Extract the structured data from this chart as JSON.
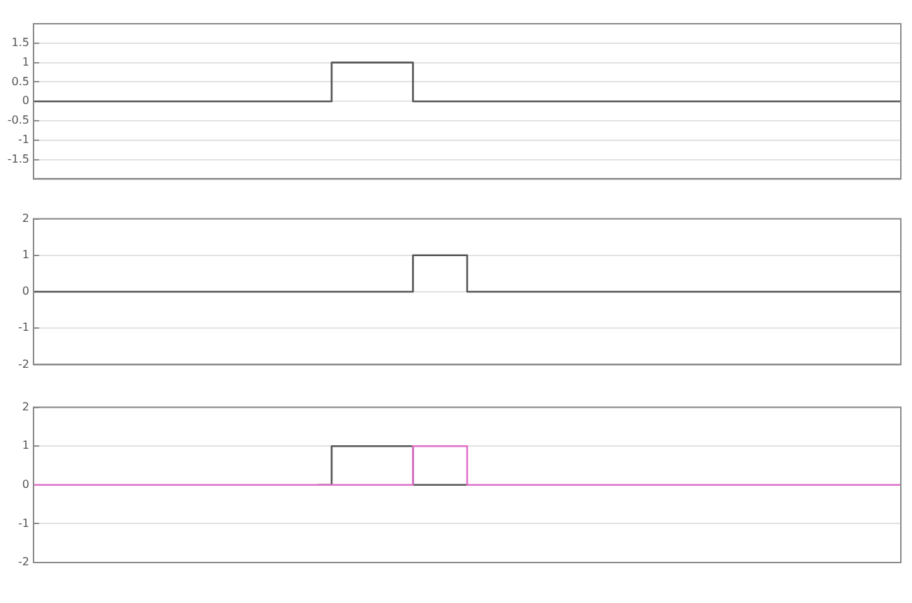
{
  "chart_data": [
    {
      "type": "step",
      "categories": [
        null,
        null,
        null,
        null,
        null,
        null,
        null,
        null,
        null,
        null,
        null,
        null,
        null,
        null,
        null,
        null,
        null,
        null,
        null,
        null,
        null,
        null,
        null,
        null,
        null,
        null,
        null,
        null,
        null,
        null,
        null,
        null,
        null,
        null,
        null,
        null,
        null,
        null,
        null,
        null,
        null,
        null,
        null,
        null,
        null,
        null,
        null,
        null,
        null,
        null,
        null,
        null,
        null,
        null,
        null,
        null,
        null,
        null,
        null,
        null,
        null,
        null,
        null,
        null,
        null
      ],
      "series": [
        {
          "color": "#555555",
          "values": [
            0,
            0,
            0,
            0,
            0,
            0,
            0,
            0,
            0,
            0,
            0,
            0,
            0,
            0,
            0,
            0,
            0,
            0,
            0,
            0,
            0,
            0,
            1,
            1,
            1,
            1,
            1,
            1,
            0,
            0,
            0,
            0,
            0,
            0,
            0,
            0,
            0,
            0,
            0,
            0,
            0,
            0,
            0,
            0,
            0,
            0,
            0,
            0,
            0,
            0,
            0,
            0,
            0,
            0,
            0,
            0,
            0,
            0,
            0,
            0,
            0,
            0,
            0,
            0,
            0
          ]
        }
      ],
      "ylim": [
        -2,
        2
      ],
      "yticks": [
        -1.5,
        -1,
        -0.5,
        0,
        0.5,
        1,
        1.5
      ],
      "grid": "y"
    },
    {
      "type": "step",
      "categories": [
        null,
        null,
        null,
        null,
        null,
        null,
        null,
        null,
        null,
        null,
        null,
        null,
        null,
        null,
        null,
        null,
        null,
        null,
        null,
        null,
        null,
        null,
        null,
        null,
        null,
        null,
        null,
        null,
        null,
        null,
        null,
        null,
        null,
        null,
        null,
        null,
        null,
        null,
        null,
        null,
        null,
        null,
        null,
        null,
        null,
        null,
        null,
        null,
        null,
        null,
        null,
        null,
        null,
        null,
        null,
        null,
        null,
        null,
        null,
        null,
        null,
        null,
        null,
        null,
        null
      ],
      "series": [
        {
          "color": "#555555",
          "values": [
            0,
            0,
            0,
            0,
            0,
            0,
            0,
            0,
            0,
            0,
            0,
            0,
            0,
            0,
            0,
            0,
            0,
            0,
            0,
            0,
            0,
            0,
            0,
            0,
            0,
            0,
            0,
            0,
            1,
            1,
            1,
            1,
            0,
            0,
            0,
            0,
            0,
            0,
            0,
            0,
            0,
            0,
            0,
            0,
            0,
            0,
            0,
            0,
            0,
            0,
            0,
            0,
            0,
            0,
            0,
            0,
            0,
            0,
            0,
            0,
            0,
            0,
            0,
            0,
            0
          ]
        }
      ],
      "ylim": [
        -2,
        2
      ],
      "yticks": [
        -2,
        -1,
        0,
        1,
        2
      ],
      "grid": "y"
    },
    {
      "type": "step",
      "categories": [
        null,
        null,
        null,
        null,
        null,
        null,
        null,
        null,
        null,
        null,
        null,
        null,
        null,
        null,
        null,
        null,
        null,
        null,
        null,
        null,
        null,
        null,
        null,
        null,
        null,
        null,
        null,
        null,
        null,
        null,
        null,
        null,
        null,
        null,
        null,
        null,
        null,
        null,
        null,
        null,
        null,
        null,
        null,
        null,
        null,
        null,
        null,
        null,
        null,
        null,
        null,
        null,
        null,
        null,
        null,
        null,
        null,
        null,
        null,
        null,
        null,
        null,
        null,
        null,
        null
      ],
      "series": [
        {
          "color": "#555555",
          "values": [
            null,
            null,
            null,
            null,
            null,
            null,
            null,
            null,
            null,
            null,
            null,
            null,
            null,
            null,
            null,
            null,
            null,
            null,
            null,
            null,
            null,
            0,
            1,
            1,
            1,
            1,
            1,
            1,
            0,
            0,
            0,
            0,
            0,
            null,
            null,
            null,
            null,
            null,
            null,
            null,
            null,
            null,
            null,
            null,
            null,
            null,
            null,
            null,
            null,
            null,
            null,
            null,
            null,
            null,
            null,
            null,
            null,
            null,
            null,
            null,
            null,
            null,
            null,
            null,
            null
          ]
        },
        {
          "color": "#e070c8",
          "values": [
            0,
            0,
            0,
            0,
            0,
            0,
            0,
            0,
            0,
            0,
            0,
            0,
            0,
            0,
            0,
            0,
            0,
            0,
            0,
            0,
            0,
            0,
            0,
            0,
            0,
            0,
            0,
            0,
            1,
            1,
            1,
            1,
            0,
            0,
            0,
            0,
            0,
            0,
            0,
            0,
            0,
            0,
            0,
            0,
            0,
            0,
            0,
            0,
            0,
            0,
            0,
            0,
            0,
            0,
            0,
            0,
            0,
            0,
            0,
            0,
            0,
            0,
            0,
            0,
            0
          ]
        }
      ],
      "ylim": [
        -2,
        2
      ],
      "yticks": [
        -2,
        -1,
        0,
        1,
        2
      ],
      "grid": "y"
    }
  ]
}
